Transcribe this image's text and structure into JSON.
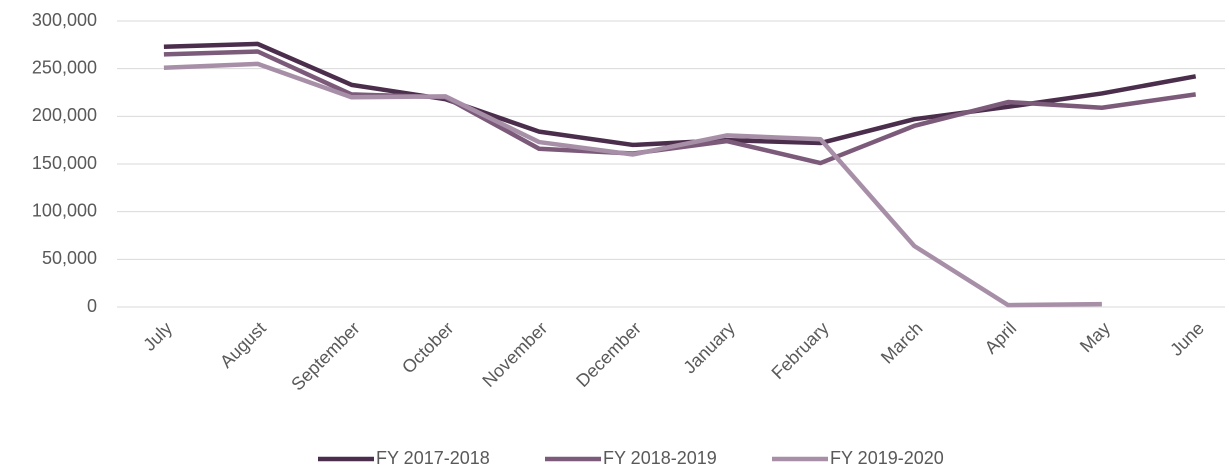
{
  "chart_data": {
    "type": "line",
    "categories": [
      "July",
      "August",
      "September",
      "October",
      "November",
      "December",
      "January",
      "February",
      "March",
      "April",
      "May",
      "June"
    ],
    "series": [
      {
        "name": "FY 2017-2018",
        "color": "#4b2d4c",
        "values": [
          273000,
          276000,
          233000,
          218000,
          184000,
          170000,
          175000,
          172000,
          197000,
          210000,
          224000,
          242000
        ]
      },
      {
        "name": "FY 2018-2019",
        "color": "#7b5a7a",
        "values": [
          265000,
          268000,
          223000,
          220000,
          166000,
          161000,
          174000,
          151000,
          190000,
          215000,
          209000,
          223000
        ]
      },
      {
        "name": "FY 2019-2020",
        "color": "#a88fa8",
        "values": [
          251000,
          255000,
          220000,
          221000,
          173000,
          160000,
          180000,
          176000,
          64000,
          2000,
          3000,
          null
        ]
      }
    ],
    "ylim": [
      0,
      300000
    ],
    "yticks": [
      {
        "value": 0,
        "label": "0"
      },
      {
        "value": 50000,
        "label": "50,000"
      },
      {
        "value": 100000,
        "label": "100,000"
      },
      {
        "value": 150000,
        "label": "150,000"
      },
      {
        "value": 200000,
        "label": "200,000"
      },
      {
        "value": 250000,
        "label": "250,000"
      },
      {
        "value": 300000,
        "label": "300,000"
      }
    ],
    "grid": true,
    "legend": "bottom"
  }
}
